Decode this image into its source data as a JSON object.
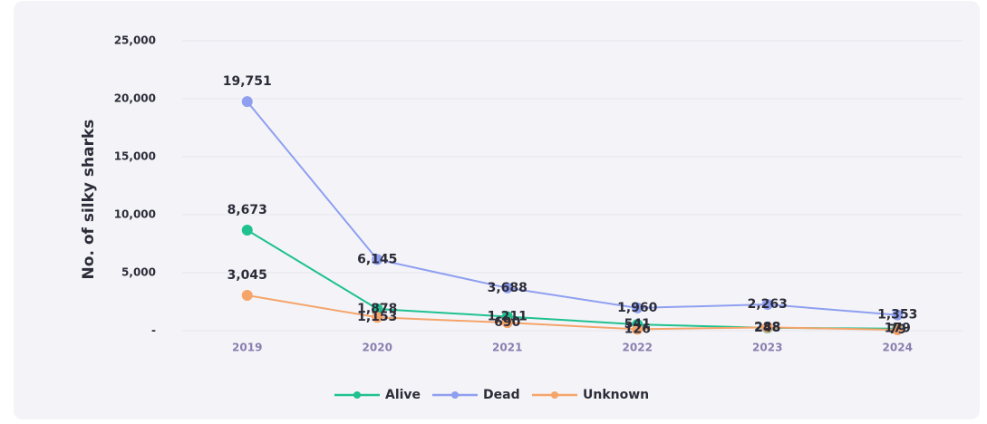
{
  "chart_data": {
    "type": "line",
    "y_label": "No. of silky sharks",
    "categories": [
      "2019",
      "2020",
      "2021",
      "2022",
      "2023",
      "2024"
    ],
    "series": [
      {
        "name": "Alive",
        "color": "#1fc18f",
        "values": [
          8673,
          1878,
          1211,
          541,
          248,
          179
        ],
        "value_labels": [
          "8,673",
          "1,878",
          "1,211",
          "541",
          "248",
          "179"
        ]
      },
      {
        "name": "Dead",
        "color": "#8f9ff0",
        "values": [
          19751,
          6145,
          3688,
          1960,
          2263,
          1353
        ],
        "value_labels": [
          "19,751",
          "6,145",
          "3,688",
          "1,960",
          "2,263",
          "1,353"
        ]
      },
      {
        "name": "Unknown",
        "color": "#f5a46a",
        "values": [
          3045,
          1153,
          690,
          126,
          288,
          79
        ],
        "value_labels": [
          "3,045",
          "1,153",
          "690",
          "126",
          "288",
          "79"
        ]
      }
    ],
    "ylim": [
      0,
      25000
    ],
    "yticks": [
      {
        "value": 0,
        "label": "-"
      },
      {
        "value": 5000,
        "label": "5,000"
      },
      {
        "value": 10000,
        "label": "10,000"
      },
      {
        "value": 15000,
        "label": "15,000"
      },
      {
        "value": 20000,
        "label": "20,000"
      },
      {
        "value": 25000,
        "label": "25,000"
      }
    ],
    "grid": true,
    "legend": "bottom"
  }
}
